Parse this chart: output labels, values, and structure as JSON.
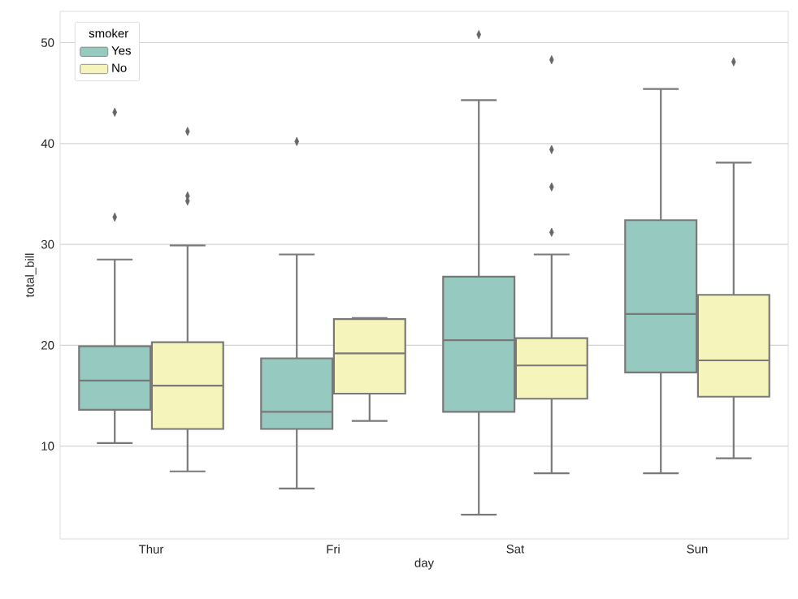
{
  "chart_data": {
    "type": "box",
    "xlabel": "day",
    "ylabel": "total_bill",
    "legend_title": "smoker",
    "categories": [
      "Thur",
      "Fri",
      "Sat",
      "Sun"
    ],
    "ylim": [
      0.8,
      53.1
    ],
    "yticks": [
      10,
      20,
      30,
      40,
      50
    ],
    "grid": "y",
    "legend": "top left",
    "marker": "diamond",
    "series": [
      {
        "name": "Yes",
        "color": "#96c9c0",
        "boxes": [
          {
            "low": 10.3,
            "q1": 13.6,
            "median": 16.5,
            "q3": 19.9,
            "high": 28.5,
            "outliers": [
              32.7,
              43.1
            ]
          },
          {
            "low": 5.8,
            "q1": 11.7,
            "median": 13.4,
            "q3": 18.7,
            "high": 29.0,
            "outliers": [
              40.2
            ]
          },
          {
            "low": 3.2,
            "q1": 13.4,
            "median": 20.5,
            "q3": 26.8,
            "high": 44.3,
            "outliers": [
              50.8
            ]
          },
          {
            "low": 7.3,
            "q1": 17.3,
            "median": 23.1,
            "q3": 32.4,
            "high": 45.4
          }
        ]
      },
      {
        "name": "No",
        "color": "#f5f5bb",
        "boxes": [
          {
            "low": 7.5,
            "q1": 11.7,
            "median": 16.0,
            "q3": 20.3,
            "high": 29.9,
            "outliers": [
              34.3,
              34.8,
              41.2
            ]
          },
          {
            "low": 12.5,
            "q1": 15.2,
            "median": 19.2,
            "q3": 22.6,
            "high": 22.7
          },
          {
            "low": 7.3,
            "q1": 14.7,
            "median": 18.0,
            "q3": 20.7,
            "high": 29.0,
            "outliers": [
              31.2,
              35.7,
              39.4,
              48.3
            ]
          },
          {
            "low": 8.8,
            "q1": 14.9,
            "median": 18.5,
            "q3": 25.0,
            "high": 38.1,
            "outliers": [
              48.1
            ]
          }
        ]
      }
    ]
  }
}
